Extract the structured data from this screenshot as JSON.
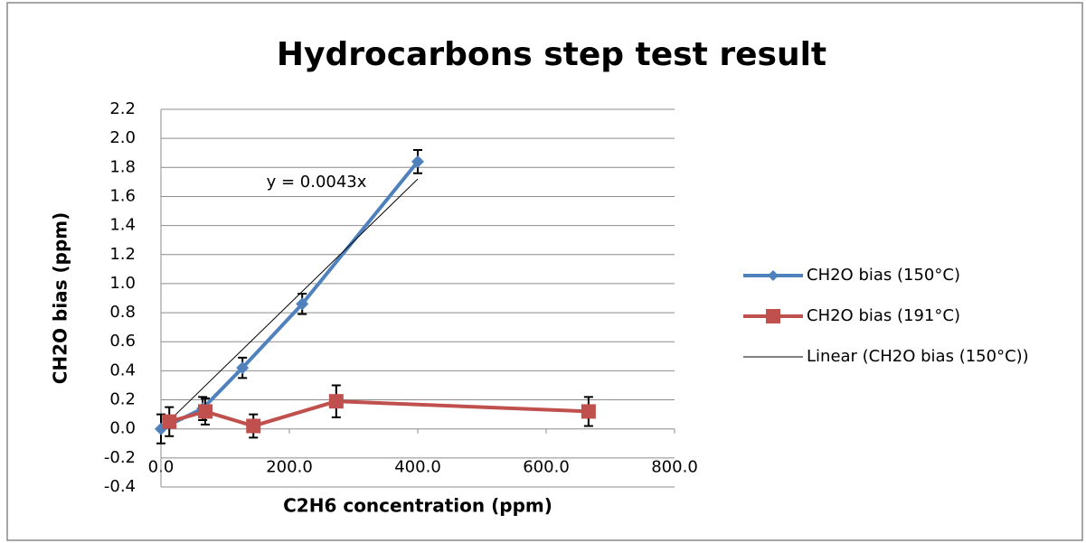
{
  "chart_data": {
    "type": "scatter",
    "title": "Hydrocarbons step test result",
    "x_label": "C2H6 concentration (ppm)",
    "y_label": "CH2O bias (ppm)",
    "annotation": "y = 0.0043x",
    "xlim": [
      0,
      800
    ],
    "xticks": [
      {
        "value": 0,
        "label": "0.0"
      },
      {
        "value": 200,
        "label": "200.0"
      },
      {
        "value": 400,
        "label": "400.0"
      },
      {
        "value": 600,
        "label": "600.0"
      },
      {
        "value": 800,
        "label": "800.0"
      }
    ],
    "ylim": [
      -0.4,
      2.2
    ],
    "yticks": [
      -0.4,
      -0.2,
      {
        "value": 0,
        "label": "0.0"
      },
      0.2,
      0.4,
      0.6,
      0.8,
      {
        "value": 1,
        "label": "1.0"
      },
      1.2,
      1.4,
      1.6,
      1.8,
      {
        "value": 2,
        "label": "2.0"
      },
      2.2
    ],
    "grid": true,
    "legend": "right",
    "series": [
      {
        "name": "CH2O bias (150°C)",
        "color": "#4f81bd",
        "marker": "diamond",
        "x": [
          0,
          65,
          127,
          220,
          400
        ],
        "values": [
          0.0,
          0.14,
          0.42,
          0.86,
          1.84
        ],
        "errors": [
          0.1,
          0.08,
          0.07,
          0.07,
          0.08
        ]
      },
      {
        "name": "CH2O bias (191°C)",
        "color": "#c0504d",
        "marker": "square",
        "x": [
          13,
          69,
          144,
          273,
          666
        ],
        "values": [
          0.05,
          0.12,
          0.02,
          0.19,
          0.12
        ],
        "errors": [
          0.1,
          0.09,
          0.08,
          0.11,
          0.1
        ]
      },
      {
        "name": "Linear (CH2O bias (150°C))",
        "color": "#000000",
        "marker": "none",
        "trendline": true,
        "x": [
          0,
          400
        ],
        "values": [
          0,
          1.72
        ]
      }
    ]
  }
}
